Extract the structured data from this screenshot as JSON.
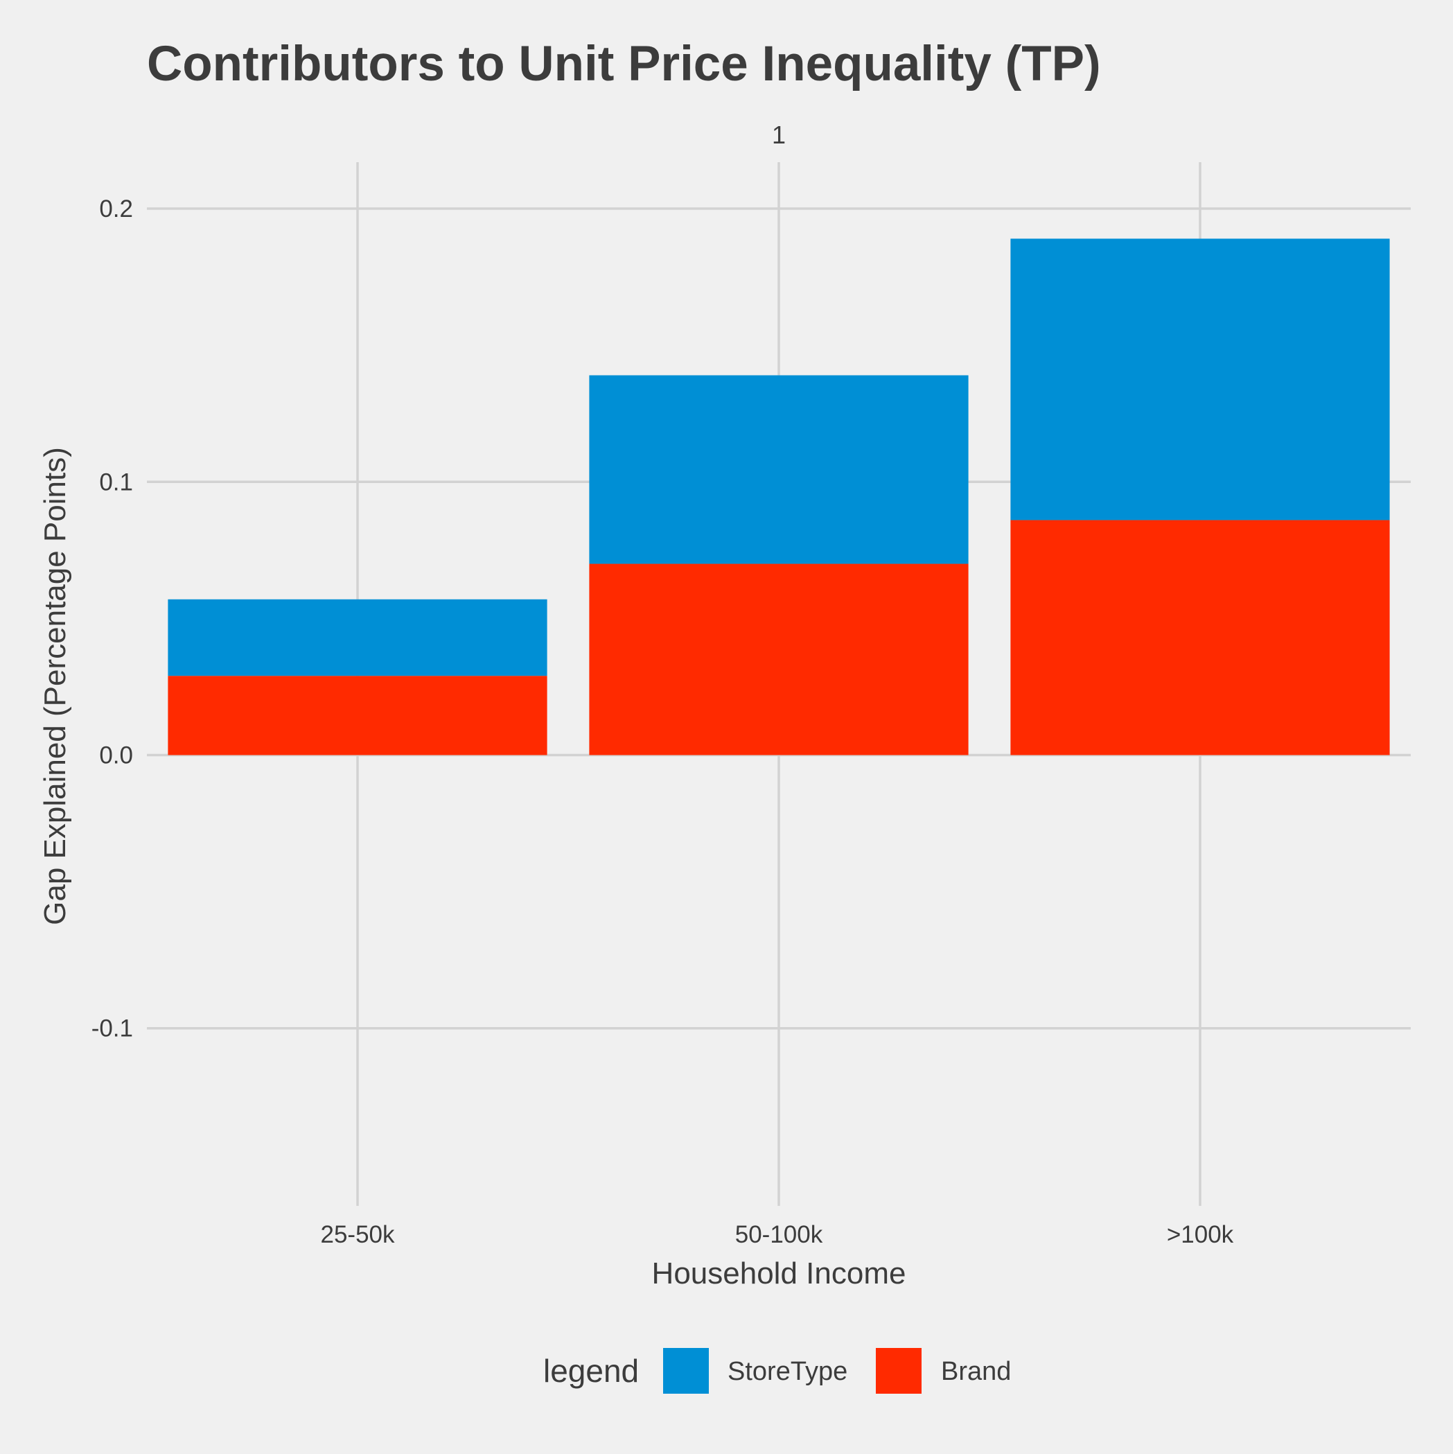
{
  "chart_data": {
    "type": "bar",
    "stacked": true,
    "title": "Contributors to Unit Price Inequality (TP)",
    "facet_label": "1",
    "xlabel": "Household Income",
    "ylabel": "Gap Explained (Percentage Points)",
    "categories": [
      "25-50k",
      "50-100k",
      ">100k"
    ],
    "series": [
      {
        "name": "Brand",
        "values": [
          0.029,
          0.07,
          0.086
        ],
        "color": "#ff2a00"
      },
      {
        "name": "StoreType",
        "values": [
          0.028,
          0.069,
          0.103
        ],
        "color": "#008fd5"
      }
    ],
    "ylim": [
      -0.165,
      0.217
    ],
    "yticks": [
      -0.1,
      0.0,
      0.1,
      0.2
    ],
    "ytick_labels": [
      "-0.1",
      "0.0",
      "0.1",
      "0.2"
    ],
    "grid": true,
    "legend": {
      "title": "legend",
      "position": "bottom",
      "entries": [
        {
          "label": "StoreType",
          "color": "#008fd5"
        },
        {
          "label": "Brand",
          "color": "#ff2a00"
        }
      ]
    },
    "background": "#f0f0f0",
    "grid_color": "#d2d2d2"
  }
}
